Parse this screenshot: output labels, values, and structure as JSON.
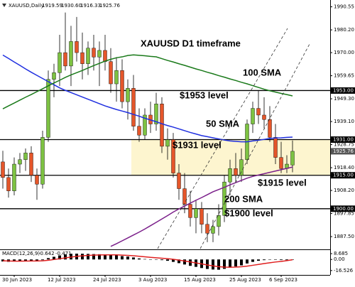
{
  "chart_data": {
    "type": "candlestick",
    "title": "XAUUSD D1 timeframe",
    "symbol": "XAUUSD,Daily",
    "header_values": [
      "1919.59",
      "1930.60",
      "1916.33",
      "1925.76"
    ],
    "categories": [
      null,
      null,
      "30 Jun 2023",
      null,
      null,
      null,
      null,
      null,
      null,
      null,
      "12 Jul 2023",
      null,
      null,
      null,
      null,
      null,
      null,
      null,
      "24 Jul 2023",
      null,
      null,
      null,
      null,
      null,
      null,
      null,
      "3 Aug 2023",
      null,
      null,
      null,
      null,
      null,
      null,
      null,
      "15 Aug 2023",
      null,
      null,
      null,
      null,
      null,
      null,
      null,
      "25 Aug 2023",
      null,
      null,
      null,
      null,
      null,
      null,
      "6 Sep 2023",
      null,
      null
    ],
    "open": [
      1921,
      1914,
      1908,
      1920,
      1922,
      1925,
      1915,
      1911,
      1932,
      1958,
      1961,
      1970,
      1964,
      1975,
      1970,
      1965,
      1972,
      1968,
      1971,
      1966,
      1956,
      1962,
      1948,
      1954,
      1937,
      1933,
      1942,
      1938,
      1947,
      1928,
      1931,
      1916,
      1909,
      1902,
      1896,
      1900,
      1893,
      1889,
      1892,
      1897,
      1912,
      1918,
      1915,
      1922,
      1938,
      1945,
      1942,
      1940,
      1932,
      1923,
      1918,
      1919.59
    ],
    "high": [
      1926,
      1918,
      1923,
      1925,
      1927,
      1928,
      1918,
      1935,
      1962,
      1965,
      1978,
      1988,
      1982,
      1986,
      1979,
      1975,
      1978,
      1975,
      1978,
      1972,
      1968,
      1967,
      1958,
      1960,
      1945,
      1945,
      1948,
      1952,
      1950,
      1936,
      1934,
      1920,
      1916,
      1908,
      1904,
      1903,
      1898,
      1895,
      1902,
      1915,
      1922,
      1925,
      1927,
      1940,
      1948,
      1953,
      1950,
      1946,
      1938,
      1930,
      1924,
      1930.6
    ],
    "low": [
      1909,
      1905,
      1906,
      1916,
      1917,
      1912,
      1904,
      1909,
      1930,
      1950,
      1955,
      1962,
      1955,
      1966,
      1958,
      1960,
      1962,
      1955,
      1962,
      1952,
      1948,
      1945,
      1940,
      1935,
      1930,
      1931,
      1934,
      1935,
      1925,
      1922,
      1914,
      1904,
      1898,
      1892,
      1889,
      1889,
      1885,
      1885,
      1888,
      1894,
      1906,
      1912,
      1912,
      1920,
      1934,
      1938,
      1936,
      1930,
      1920,
      1916,
      1916,
      1916.33
    ],
    "close": [
      1914,
      1908,
      1920,
      1922,
      1925,
      1915,
      1911,
      1932,
      1958,
      1961,
      1970,
      1964,
      1975,
      1970,
      1965,
      1972,
      1968,
      1971,
      1966,
      1956,
      1962,
      1948,
      1954,
      1937,
      1933,
      1942,
      1938,
      1947,
      1928,
      1931,
      1916,
      1909,
      1902,
      1896,
      1900,
      1893,
      1889,
      1892,
      1897,
      1912,
      1918,
      1915,
      1922,
      1938,
      1945,
      1942,
      1940,
      1932,
      1923,
      1918,
      1920,
      1925.76
    ],
    "up_color": "#7dc242",
    "down_color": "#e5562a",
    "series": [
      {
        "name": "50 SMA",
        "color": "#1f2fe0",
        "values": [
          1968.9,
          1967.4,
          1965.8,
          1964.3,
          1962.7,
          1961.2,
          1959.8,
          1958.4,
          1957.0,
          1955.6,
          1954.2,
          1953.1,
          1952.1,
          1951.1,
          1950.1,
          1949.1,
          1948.1,
          1947.1,
          1946.1,
          1945.3,
          1944.5,
          1943.8,
          1943.1,
          1942.3,
          1941.5,
          1940.6,
          1939.8,
          1939.0,
          1938.1,
          1937.3,
          1936.6,
          1935.8,
          1935.0,
          1934.2,
          1933.5,
          1932.8,
          1932.3,
          1931.8,
          1931.3,
          1930.8,
          1930.4,
          1930.2,
          1930.0,
          1930.0,
          1930.4,
          1930.7,
          1931.1,
          1931.5,
          1931.7,
          1931.8,
          1932.0,
          1932.1
        ]
      },
      {
        "name": "100 SMA",
        "color": "#1a7a1a",
        "values": [
          1944.8,
          1946.1,
          1947.4,
          1948.7,
          1950.0,
          1951.2,
          1952.5,
          1953.8,
          1955.1,
          1956.4,
          1957.6,
          1958.9,
          1960.0,
          1961.0,
          1962.0,
          1963.1,
          1964.2,
          1965.2,
          1966.2,
          1967.0,
          1967.7,
          1968.1,
          1968.7,
          1969.0,
          1968.8,
          1968.6,
          1968.3,
          1968.1,
          1967.3,
          1966.5,
          1965.8,
          1965.0,
          1964.3,
          1963.5,
          1962.7,
          1962.0,
          1961.2,
          1960.5,
          1959.7,
          1959.0,
          1958.2,
          1957.5,
          1956.7,
          1956.0,
          1955.2,
          1954.4,
          1953.6,
          1952.9,
          1952.3,
          1951.7,
          1951.2,
          1950.6
        ]
      },
      {
        "name": "200 SMA",
        "color": "#7b1f8a",
        "values": [
          null,
          null,
          null,
          null,
          null,
          null,
          null,
          null,
          null,
          null,
          null,
          null,
          null,
          null,
          null,
          null,
          null,
          null,
          null,
          1883.1,
          1884.3,
          1885.6,
          1886.9,
          1888.2,
          1889.5,
          1890.9,
          1892.4,
          1893.9,
          1895.4,
          1896.9,
          1898.5,
          1899.9,
          1901.2,
          1902.5,
          1903.8,
          1905.0,
          1906.3,
          1907.6,
          1908.6,
          1909.6,
          1910.7,
          1911.7,
          1912.7,
          1913.7,
          1914.5,
          1915.1,
          1915.7,
          1916.3,
          1916.9,
          1917.5,
          1918.1,
          1918.7
        ]
      }
    ],
    "levels": [
      {
        "value": 1953,
        "label": "1953.00",
        "text": "$1953 level"
      },
      {
        "value": 1931,
        "label": "1931.00",
        "text": "$1931 level"
      },
      {
        "value": 1915,
        "label": "1915.00",
        "text": "$1915 level"
      },
      {
        "value": 1900,
        "label": "1900.00",
        "text": "$1900 level"
      }
    ],
    "zone_color": "#fdf5cf",
    "ylim": [
      1882.1,
      1993.6
    ],
    "yticks": [
      1990.55,
      {
        "value": 1980.2,
        "label": "1980.20"
      },
      {
        "value": 1970,
        "label": "1970.00"
      },
      1959.65,
      {
        "value": 1949.3,
        "label": "1949.30"
      },
      {
        "value": 1939.1,
        "label": "1939.10"
      },
      1928.75,
      {
        "value": 1918.4,
        "label": "1918.40"
      },
      {
        "value": 1908.2,
        "label": "1908.20"
      },
      1897.85,
      {
        "value": 1887.5,
        "label": "1887.50"
      }
    ],
    "macd": {
      "name": "MACD(12,26,9)",
      "color": "#000000",
      "signal_color": "#e02020",
      "values": [
        -3,
        -3.5,
        -3,
        -2.5,
        -2,
        -2,
        -2.2,
        -1,
        2,
        4,
        6,
        7.5,
        8.5,
        8.6,
        8.5,
        8.3,
        8,
        7.8,
        7.5,
        6.8,
        6.2,
        5,
        4.3,
        3,
        1.5,
        0.6,
        -0.2,
        0,
        -1,
        -2,
        -3.6,
        -5.5,
        -7.5,
        -9.5,
        -11,
        -12.8,
        -14.2,
        -15,
        -15.3,
        -14,
        -12.2,
        -10.5,
        -8.8,
        -6,
        -3.6,
        -2,
        -1,
        -0.4,
        -0.6,
        -0.9,
        -1,
        -0.642
      ],
      "signal": [
        -2,
        -2.3,
        -2.5,
        -2.5,
        -2.4,
        -2.3,
        -2.3,
        -2,
        -1.2,
        -0.1,
        1.1,
        2.4,
        3.6,
        4.6,
        5.4,
        6,
        6.4,
        6.7,
        6.9,
        6.9,
        6.8,
        6.5,
        6.1,
        5.5,
        4.7,
        3.9,
        3.1,
        2.5,
        1.8,
        1.1,
        0.2,
        -1,
        -2.3,
        -3.7,
        -5.2,
        -6.7,
        -8.2,
        -9.6,
        -10.7,
        -11.4,
        -11.6,
        -11.4,
        -10.9,
        -9.9,
        -8.7,
        -7.4,
        -6.1,
        -4.9,
        -3.8,
        -2.9,
        -1.7,
        -0.471
      ],
      "ylim": [
        -22,
        14
      ],
      "yticks": [
        8.685,
        {
          "value": 0,
          "label": "0.00"
        },
        -16.526
      ]
    }
  }
}
